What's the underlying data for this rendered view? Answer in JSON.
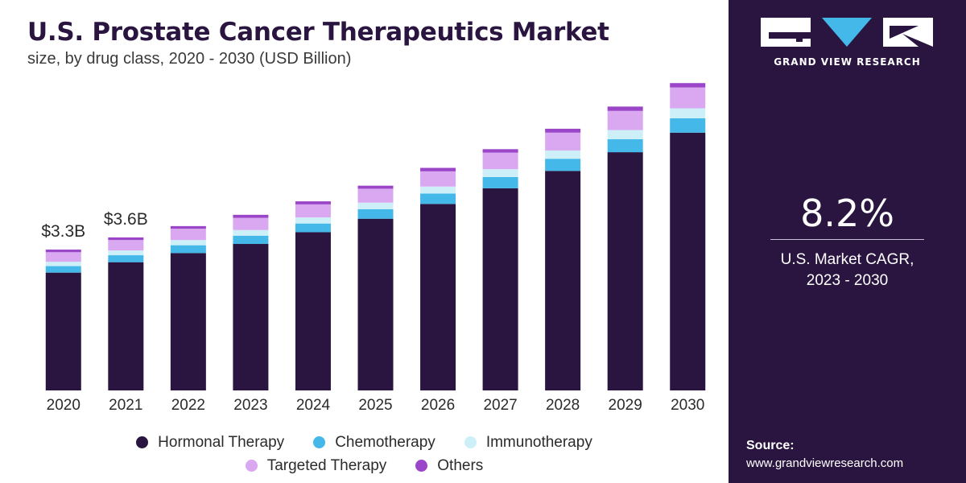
{
  "header": {
    "title": "U.S. Prostate Cancer Therapeutics Market",
    "subtitle": "size, by drug class, 2020 - 2030 (USD Billion)"
  },
  "chart_data": {
    "type": "bar",
    "stacked": true,
    "categories": [
      "2020",
      "2021",
      "2022",
      "2023",
      "2024",
      "2025",
      "2026",
      "2027",
      "2028",
      "2029",
      "2030"
    ],
    "series": [
      {
        "name": "Hormonal Therapy",
        "color": "#2a1540",
        "values": [
          2.71,
          2.95,
          3.16,
          3.37,
          3.64,
          3.95,
          4.29,
          4.65,
          5.05,
          5.48,
          5.93
        ]
      },
      {
        "name": "Chemotherapy",
        "color": "#45b8ea",
        "values": [
          0.15,
          0.16,
          0.18,
          0.19,
          0.2,
          0.22,
          0.24,
          0.26,
          0.28,
          0.3,
          0.33
        ]
      },
      {
        "name": "Immunotherapy",
        "color": "#cdeff8",
        "values": [
          0.1,
          0.11,
          0.12,
          0.13,
          0.14,
          0.15,
          0.16,
          0.18,
          0.19,
          0.21,
          0.23
        ]
      },
      {
        "name": "Targeted Therapy",
        "color": "#d9a8f0",
        "values": [
          0.22,
          0.24,
          0.26,
          0.28,
          0.3,
          0.32,
          0.35,
          0.38,
          0.41,
          0.44,
          0.48
        ]
      },
      {
        "name": "Others",
        "color": "#9b46c9",
        "values": [
          0.06,
          0.06,
          0.06,
          0.07,
          0.07,
          0.07,
          0.08,
          0.08,
          0.09,
          0.1,
          0.1
        ]
      }
    ],
    "data_labels": [
      {
        "category": "2020",
        "text": "$3.3B"
      },
      {
        "category": "2021",
        "text": "$3.6B"
      }
    ],
    "ylim": [
      0,
      7.5
    ],
    "grid": false,
    "legend_position": "bottom",
    "xlabel": "",
    "ylabel": ""
  },
  "side_panel": {
    "brand": "GRAND VIEW RESEARCH",
    "cagr_value": "8.2%",
    "cagr_label_line1": "U.S. Market CAGR,",
    "cagr_label_line2": "2023 - 2030",
    "source_label": "Source:",
    "source_url": "www.grandviewresearch.com"
  }
}
